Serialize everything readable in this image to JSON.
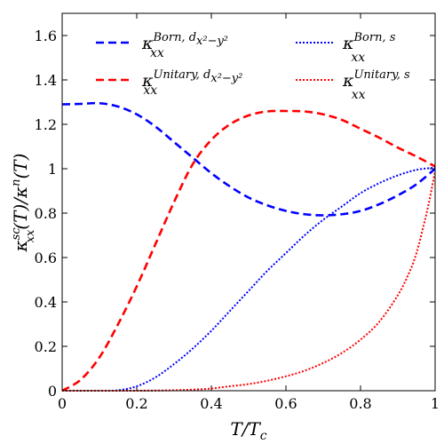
{
  "chart_data": {
    "type": "line",
    "xlabel": "T/T_c",
    "ylabel": "κ_xx^sc(T)/κ^n(T)",
    "xlim": [
      0,
      1
    ],
    "ylim": [
      0,
      1.7
    ],
    "xticks": [
      0,
      0.2,
      0.4,
      0.6,
      0.8,
      1
    ],
    "xtick_labels": [
      "0",
      "0.2",
      "0.4",
      "0.6",
      "0.8",
      "1"
    ],
    "yticks": [
      0,
      0.2,
      0.4,
      0.6,
      0.8,
      1,
      1.2,
      1.4,
      1.6
    ],
    "ytick_labels": [
      "0",
      "0.2",
      "0.4",
      "0.6",
      "0.8",
      "1",
      "1.2",
      "1.4",
      "1.6"
    ],
    "grid": false,
    "legend_placement": "top",
    "series": [
      {
        "name": "κ_xx^{Born, d_{x²−y²}}",
        "color": "#0000ff",
        "style": "dashed",
        "x": [
          0,
          0.05,
          0.1,
          0.15,
          0.2,
          0.25,
          0.3,
          0.35,
          0.4,
          0.45,
          0.5,
          0.55,
          0.6,
          0.65,
          0.7,
          0.75,
          0.8,
          0.85,
          0.9,
          0.95,
          1.0
        ],
        "y": [
          1.29,
          1.292,
          1.295,
          1.28,
          1.245,
          1.19,
          1.12,
          1.05,
          0.98,
          0.92,
          0.87,
          0.835,
          0.81,
          0.795,
          0.79,
          0.795,
          0.81,
          0.84,
          0.88,
          0.93,
          1.0
        ]
      },
      {
        "name": "κ_xx^{Unitary, d_{x²−y²}}",
        "color": "#ff0000",
        "style": "dashed",
        "x": [
          0,
          0.05,
          0.1,
          0.15,
          0.2,
          0.25,
          0.3,
          0.35,
          0.4,
          0.45,
          0.5,
          0.55,
          0.6,
          0.65,
          0.7,
          0.75,
          0.8,
          0.85,
          0.9,
          0.95,
          1.0
        ],
        "y": [
          0.0,
          0.05,
          0.15,
          0.3,
          0.47,
          0.66,
          0.85,
          1.02,
          1.13,
          1.2,
          1.24,
          1.258,
          1.26,
          1.258,
          1.245,
          1.22,
          1.18,
          1.14,
          1.095,
          1.055,
          1.01
        ]
      },
      {
        "name": "κ_xx^{Born, s}",
        "color": "#0000ff",
        "style": "dotted",
        "x": [
          0,
          0.05,
          0.1,
          0.15,
          0.2,
          0.25,
          0.3,
          0.35,
          0.4,
          0.45,
          0.5,
          0.55,
          0.6,
          0.65,
          0.7,
          0.75,
          0.8,
          0.85,
          0.9,
          0.95,
          1.0
        ],
        "y": [
          0.0,
          0.0,
          0.0,
          0.002,
          0.02,
          0.06,
          0.12,
          0.19,
          0.27,
          0.36,
          0.45,
          0.54,
          0.62,
          0.7,
          0.77,
          0.83,
          0.89,
          0.935,
          0.97,
          0.995,
          1.005
        ]
      },
      {
        "name": "κ_xx^{Unitary, s}",
        "color": "#ff0000",
        "style": "dotted",
        "x": [
          0,
          0.1,
          0.2,
          0.3,
          0.35,
          0.4,
          0.45,
          0.5,
          0.55,
          0.6,
          0.65,
          0.7,
          0.75,
          0.8,
          0.85,
          0.9,
          0.93,
          0.95,
          0.97,
          0.985,
          1.0
        ],
        "y": [
          0.0,
          0.0,
          0.0,
          0.002,
          0.005,
          0.01,
          0.02,
          0.03,
          0.045,
          0.065,
          0.09,
          0.125,
          0.17,
          0.23,
          0.31,
          0.43,
          0.53,
          0.62,
          0.75,
          0.86,
          0.99
        ]
      }
    ]
  }
}
